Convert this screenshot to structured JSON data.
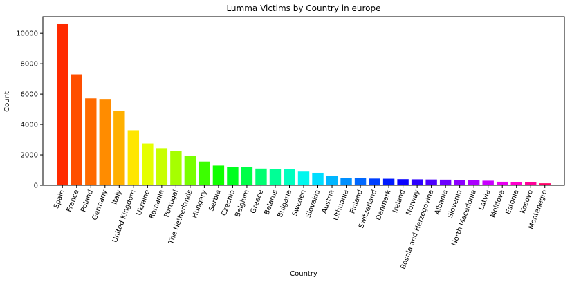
{
  "chart_data": {
    "type": "bar",
    "title": "Lumma Victims by Country in europe",
    "xlabel": "Country",
    "ylabel": "Count",
    "ylim": [
      0,
      11100
    ],
    "yticks": [
      0,
      2000,
      4000,
      6000,
      8000,
      10000
    ],
    "grid": false,
    "categories": [
      "Spain",
      "France",
      "Poland",
      "Germany",
      "Italy",
      "United Kingdom",
      "Ukraine",
      "Romania",
      "Portugal",
      "The Netherlands",
      "Hungary",
      "Serbia",
      "Czechia",
      "Belgium",
      "Greece",
      "Belarus",
      "Bulgaria",
      "Sweden",
      "Slovakia",
      "Austria",
      "Lithuania",
      "Finland",
      "Switzerland",
      "Denmark",
      "Ireland",
      "Norway",
      "Bosnia and Herzegovina",
      "Albania",
      "Slovenia",
      "North Macedonia",
      "Latvia",
      "Moldova",
      "Estonia",
      "Kosovo",
      "Montenegro"
    ],
    "values": [
      10600,
      7300,
      5720,
      5680,
      4900,
      3620,
      2750,
      2440,
      2260,
      1940,
      1560,
      1300,
      1220,
      1200,
      1100,
      1050,
      1050,
      900,
      820,
      620,
      500,
      460,
      440,
      430,
      400,
      390,
      380,
      370,
      360,
      340,
      300,
      230,
      200,
      190,
      130
    ],
    "colors": [
      "#ff2a00",
      "#ff4e00",
      "#ff6a00",
      "#ff8c00",
      "#ffb000",
      "#ffe600",
      "#e5ff00",
      "#c8ff00",
      "#a6ff00",
      "#7aff00",
      "#3cff00",
      "#10ff00",
      "#00ff1e",
      "#00ff47",
      "#00ff70",
      "#00ff96",
      "#00ffbe",
      "#00f7ee",
      "#00ddff",
      "#00b6ff",
      "#0090ff",
      "#0068ff",
      "#0040ff",
      "#001aff",
      "#0a00ff",
      "#2c00ff",
      "#4c00ff",
      "#6c00ff",
      "#8c00ff",
      "#ab00ff",
      "#ca00ff",
      "#e800f0",
      "#ff00cc",
      "#ff0099",
      "#ff0066"
    ]
  }
}
